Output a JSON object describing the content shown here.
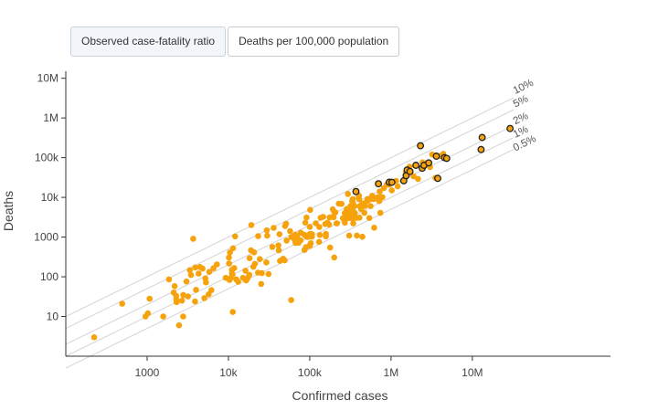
{
  "tabs": [
    {
      "label": "Observed case-fatality ratio",
      "active": true
    },
    {
      "label": "Deaths per 100,000 population",
      "active": false
    }
  ],
  "colors": {
    "point": "#f5a20c",
    "highlight_stroke": "#222222",
    "guide": "#d3d3d3",
    "axis": "#333333"
  },
  "chart_data": {
    "type": "scatter",
    "xlabel": "Confirmed cases",
    "ylabel": "Deaths",
    "x_scale": "log",
    "y_scale": "log",
    "xlim": [
      100,
      500000000
    ],
    "ylim": [
      1,
      15000000
    ],
    "x_ticks": [
      {
        "value": 1000,
        "label": "1000"
      },
      {
        "value": 10000,
        "label": "10k"
      },
      {
        "value": 100000,
        "label": "100k"
      },
      {
        "value": 1000000,
        "label": "1M"
      },
      {
        "value": 10000000,
        "label": "10M"
      }
    ],
    "y_ticks": [
      {
        "value": 10,
        "label": "10"
      },
      {
        "value": 100,
        "label": "100"
      },
      {
        "value": 1000,
        "label": "1000"
      },
      {
        "value": 10000,
        "label": "10k"
      },
      {
        "value": 100000,
        "label": "100k"
      },
      {
        "value": 1000000,
        "label": "1M"
      },
      {
        "value": 10000000,
        "label": "10M"
      }
    ],
    "ratio_lines": [
      {
        "ratio": 0.1,
        "label": "10%"
      },
      {
        "ratio": 0.05,
        "label": "5%"
      },
      {
        "ratio": 0.02,
        "label": "2%"
      },
      {
        "ratio": 0.01,
        "label": "1%"
      },
      {
        "ratio": 0.005,
        "label": "0.5%"
      }
    ],
    "grid": false,
    "points": [
      [
        223,
        3
      ],
      [
        494,
        21
      ],
      [
        955,
        10
      ],
      [
        1023,
        12
      ],
      [
        1073,
        28
      ],
      [
        1578,
        10
      ],
      [
        1859,
        86
      ],
      [
        2123,
        40
      ],
      [
        2179,
        58
      ],
      [
        2280,
        33
      ],
      [
        2287,
        27
      ],
      [
        2304,
        23
      ],
      [
        2471,
        6
      ],
      [
        2680,
        25
      ],
      [
        2772,
        10
      ],
      [
        2782,
        35
      ],
      [
        3042,
        76
      ],
      [
        3186,
        32
      ],
      [
        3350,
        147
      ],
      [
        3467,
        111
      ],
      [
        3684,
        908
      ],
      [
        3883,
        24
      ],
      [
        3908,
        172
      ],
      [
        3997,
        47
      ],
      [
        4294,
        120
      ],
      [
        4469,
        177
      ],
      [
        4804,
        161
      ],
      [
        5059,
        29
      ],
      [
        5207,
        91
      ],
      [
        5305,
        72
      ],
      [
        5705,
        36
      ],
      [
        5812,
        133
      ],
      [
        6181,
        46
      ],
      [
        6554,
        164
      ],
      [
        7203,
        205
      ],
      [
        9271,
        94
      ],
      [
        10146,
        305
      ],
      [
        10189,
        215
      ],
      [
        10320,
        83
      ],
      [
        10440,
        411
      ],
      [
        10663,
        93
      ],
      [
        11021,
        149
      ],
      [
        11069,
        122
      ],
      [
        11226,
        113
      ],
      [
        11323,
        13
      ],
      [
        11412,
        523
      ],
      [
        11789,
        165
      ],
      [
        12104,
        1040
      ],
      [
        12489,
        86
      ],
      [
        13180,
        75
      ],
      [
        15104,
        94
      ],
      [
        16197,
        142
      ],
      [
        16567,
        81
      ],
      [
        17251,
        93
      ],
      [
        18049,
        112
      ],
      [
        18202,
        294
      ],
      [
        19004,
        463
      ],
      [
        19106,
        2006
      ],
      [
        20235,
        179
      ],
      [
        20674,
        412
      ],
      [
        21153,
        211
      ],
      [
        23118,
        127
      ],
      [
        23244,
        1058
      ],
      [
        24304,
        278
      ],
      [
        25314,
        66
      ],
      [
        25770,
        124
      ],
      [
        29207,
        230
      ],
      [
        29646,
        1475
      ],
      [
        30017,
        1085
      ],
      [
        31144,
        117
      ],
      [
        34658,
        564
      ],
      [
        36061,
        1706
      ],
      [
        41138,
        617
      ],
      [
        41664,
        464
      ],
      [
        42458,
        1183
      ],
      [
        43153,
        251
      ],
      [
        46223,
        275
      ],
      [
        47189,
        285
      ],
      [
        49197,
        259
      ],
      [
        49700,
        1900
      ],
      [
        51181,
        2160
      ],
      [
        52008,
        815
      ],
      [
        57304,
        1414
      ],
      [
        59131,
        26
      ],
      [
        59431,
        1002
      ],
      [
        65154,
        856
      ],
      [
        66255,
        1151
      ],
      [
        67129,
        709
      ],
      [
        70119,
        1060
      ],
      [
        73103,
        719
      ],
      [
        77208,
        827
      ],
      [
        77569,
        1289
      ],
      [
        86149,
        1140
      ],
      [
        86223,
        474
      ],
      [
        88240,
        2302
      ],
      [
        90009,
        561
      ],
      [
        91074,
        1030
      ],
      [
        91208,
        3095
      ],
      [
        95195,
        1002
      ],
      [
        100017,
        601
      ],
      [
        100220,
        1189
      ],
      [
        100240,
        1802
      ],
      [
        101294,
        4839
      ],
      [
        101474,
        661
      ],
      [
        103208,
        700
      ],
      [
        106218,
        1190
      ],
      [
        106277,
        1018
      ],
      [
        119010,
        2217
      ],
      [
        130082,
        758
      ],
      [
        131066,
        1800
      ],
      [
        133133,
        1129
      ],
      [
        136133,
        3068
      ],
      [
        146143,
        3227
      ],
      [
        155202,
        2125
      ],
      [
        158180,
        1200
      ],
      [
        158189,
        1039
      ],
      [
        165108,
        2302
      ],
      [
        173134,
        2059
      ],
      [
        176185,
        3136
      ],
      [
        178130,
        544
      ],
      [
        192105,
        5007
      ],
      [
        197110,
        3174
      ],
      [
        200181,
        307
      ],
      [
        201231,
        4164
      ],
      [
        207157,
        4200
      ],
      [
        214093,
        2209
      ],
      [
        216007,
        2216
      ],
      [
        228177,
        6890
      ],
      [
        246154,
        6850
      ],
      [
        256008,
        2982
      ],
      [
        270087,
        2302
      ],
      [
        270158,
        4050
      ],
      [
        274005,
        3300
      ],
      [
        285224,
        5088
      ],
      [
        295006,
        12162
      ],
      [
        295104,
        3057
      ],
      [
        296219,
        3001
      ],
      [
        302149,
        3000
      ],
      [
        306032,
        3993
      ],
      [
        306190,
        1090
      ],
      [
        317090,
        6020
      ],
      [
        327081,
        4092
      ],
      [
        328189,
        3047
      ],
      [
        330037,
        2970
      ],
      [
        333100,
        8094
      ],
      [
        335111,
        5104
      ],
      [
        338089,
        9025
      ],
      [
        339061,
        7020
      ],
      [
        343110,
        2208
      ],
      [
        355026,
        4076
      ],
      [
        356008,
        6021
      ],
      [
        358124,
        4050
      ],
      [
        363050,
        3063
      ],
      [
        380219,
        3075
      ],
      [
        380017,
        1090
      ],
      [
        398190,
        10071
      ],
      [
        403132,
        11046
      ],
      [
        405216,
        9069
      ],
      [
        410121,
        3087
      ],
      [
        414081,
        6058
      ],
      [
        428119,
        5070
      ],
      [
        440031,
        7046
      ],
      [
        444114,
        1020
      ],
      [
        470134,
        4082
      ],
      [
        472016,
        7100
      ],
      [
        476115,
        6083
      ],
      [
        512013,
        9072
      ],
      [
        513209,
        8059
      ],
      [
        540081,
        3012
      ],
      [
        560041,
        6006
      ],
      [
        573054,
        9089
      ],
      [
        585101,
        11002
      ],
      [
        617055,
        9092
      ],
      [
        620125,
        1720
      ],
      [
        682068,
        10013
      ],
      [
        714165,
        8040
      ],
      [
        725024,
        14000
      ],
      [
        740004,
        4071
      ],
      [
        753091,
        10093
      ],
      [
        785133,
        10099
      ],
      [
        814076,
        17043
      ],
      [
        889131,
        21003
      ],
      [
        955212,
        21003
      ],
      [
        1022027,
        15049
      ],
      [
        1150097,
        26012
      ],
      [
        1207032,
        19018
      ],
      [
        1411222,
        26056
      ],
      [
        1520155,
        43200
      ],
      [
        1530041,
        33006
      ],
      [
        1691001,
        59089
      ],
      [
        1893090,
        34003
      ],
      [
        2147091,
        29081
      ],
      [
        2436082,
        76009
      ],
      [
        2618020,
        72008
      ],
      [
        3022099,
        58002
      ],
      [
        3210017,
        120018
      ],
      [
        4012204,
        110103
      ],
      [
        4403003,
        125096
      ],
      [
        3510118,
        31028
      ],
      [
        12820042,
        162030
      ],
      [
        29050045,
        553001
      ],
      [
        370003,
        14003
      ],
      [
        700063,
        22020
      ],
      [
        949217,
        24015
      ],
      [
        1024089,
        24001
      ],
      [
        1433002,
        26201
      ],
      [
        1534119,
        35211
      ],
      [
        1579022,
        49008
      ],
      [
        1708112,
        45007
      ],
      [
        2024018,
        64003
      ],
      [
        2301113,
        199003
      ],
      [
        2420008,
        54202
      ],
      [
        2542031,
        64001
      ],
      [
        2903099,
        74003
      ],
      [
        3610087,
        109007
      ],
      [
        3751052,
        30010
      ],
      [
        4533109,
        100001
      ],
      [
        4844002,
        96009
      ],
      [
        13210003,
        323004
      ],
      [
        12810001,
        160022
      ],
      [
        29100077,
        542002
      ]
    ],
    "highlighted": [
      [
        370003,
        14003
      ],
      [
        700063,
        22020
      ],
      [
        949217,
        24015
      ],
      [
        1024089,
        24001
      ],
      [
        1433002,
        26201
      ],
      [
        1534119,
        35211
      ],
      [
        1579022,
        49008
      ],
      [
        1708112,
        45007
      ],
      [
        2024018,
        64003
      ],
      [
        2301113,
        199003
      ],
      [
        2420008,
        54202
      ],
      [
        2542031,
        64001
      ],
      [
        2903099,
        74003
      ],
      [
        3610087,
        109007
      ],
      [
        3751052,
        30010
      ],
      [
        4533109,
        100001
      ],
      [
        4844002,
        96009
      ],
      [
        13210003,
        323004
      ],
      [
        12810001,
        160022
      ],
      [
        29100077,
        542002
      ]
    ]
  }
}
